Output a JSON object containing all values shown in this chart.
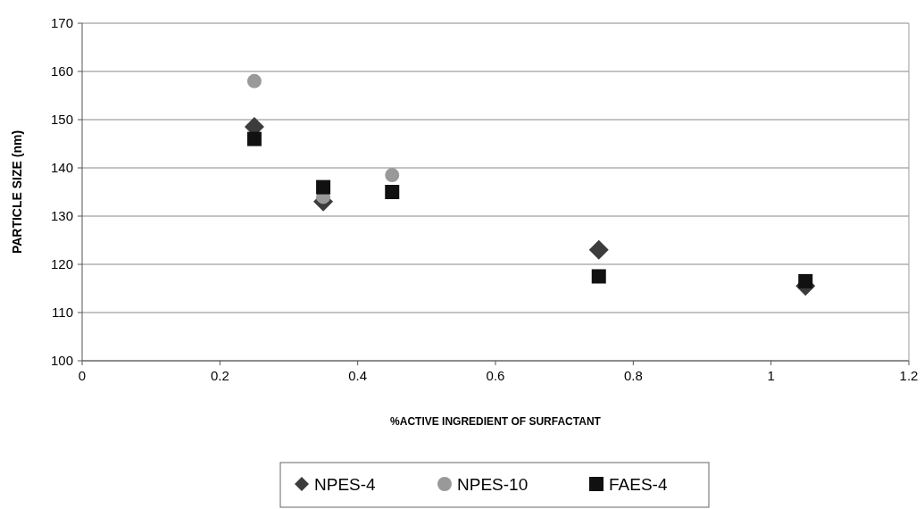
{
  "chart_data": {
    "type": "scatter",
    "xlabel": "%ACTIVE INGREDIENT OF SURFACTANT",
    "ylabel": "PARTICLE SIZE (nm)",
    "x": [
      0.25,
      0.35,
      0.45,
      0.75,
      1.05
    ],
    "series": [
      {
        "name": "NPES-4",
        "color": "#3c3c3c",
        "marker": "diamond",
        "values": [
          148.5,
          133,
          null,
          123,
          115.5
        ]
      },
      {
        "name": "NPES-10",
        "color": "#999999",
        "marker": "circle",
        "values": [
          158,
          134,
          138.5,
          null,
          null
        ]
      },
      {
        "name": "FAES-4",
        "color": "#111111",
        "marker": "square",
        "values": [
          146,
          136,
          135,
          117.5,
          116.5
        ]
      }
    ],
    "xlim": [
      0,
      1.2
    ],
    "xticks": [
      0,
      0.2,
      0.4,
      0.6,
      0.8,
      1,
      1.2
    ],
    "ylim": [
      100,
      170
    ],
    "yticks": [
      100,
      110,
      120,
      130,
      140,
      150,
      160,
      170
    ],
    "grid": "y",
    "legend": "bottom"
  }
}
